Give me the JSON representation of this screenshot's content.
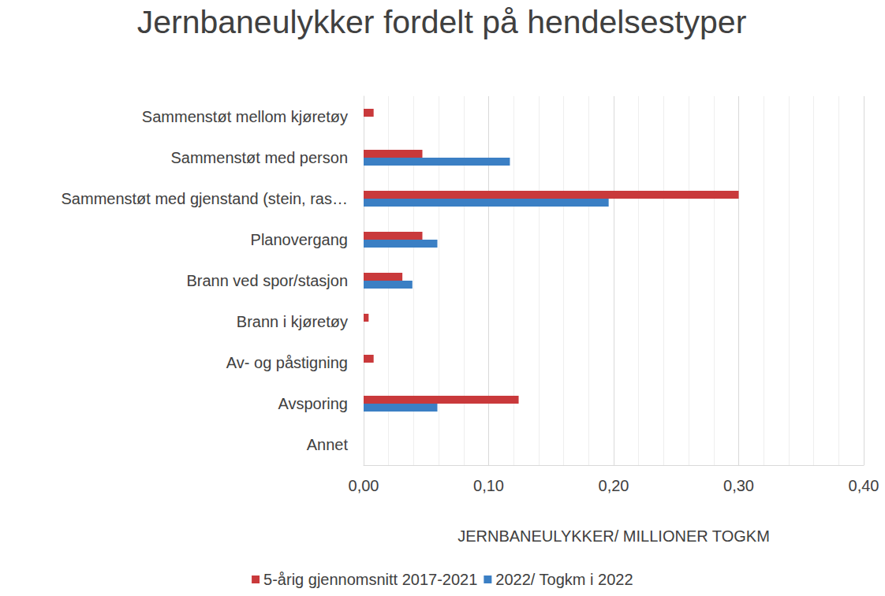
{
  "chart_data": {
    "type": "bar",
    "orientation": "horizontal",
    "title": "Jernbaneulykker fordelt på hendelsestyper",
    "xlabel": "JERNBANEULYKKER/ MILLIONER TOGKM",
    "categories": [
      "Sammenstøt mellom kjøretøy",
      "Sammenstøt med person",
      "Sammenstøt med gjenstand (stein, ras…",
      "Planovergang",
      "Brann ved spor/stasjon",
      "Brann i kjøretøy",
      "Av- og påstigning",
      "Avsporing",
      "Annet"
    ],
    "series": [
      {
        "name": "5-årig gjennomsnitt 2017-2021",
        "color": "#c9393b",
        "values": [
          0.008,
          0.047,
          0.3,
          0.047,
          0.031,
          0.004,
          0.008,
          0.124,
          0
        ]
      },
      {
        "name": "2022/ Togkm i 2022",
        "color": "#3b7fc4",
        "values": [
          0,
          0.117,
          0.196,
          0.059,
          0.039,
          0,
          0,
          0.059,
          0
        ]
      }
    ],
    "xlim": [
      0,
      0.4
    ],
    "xticks": [
      {
        "value": 0,
        "label": "0,00"
      },
      {
        "value": 0.1,
        "label": "0,10"
      },
      {
        "value": 0.2,
        "label": "0,20"
      },
      {
        "value": 0.3,
        "label": "0,30"
      },
      {
        "value": 0.4,
        "label": "0,40"
      }
    ],
    "grid": true,
    "legend": "bottom"
  }
}
